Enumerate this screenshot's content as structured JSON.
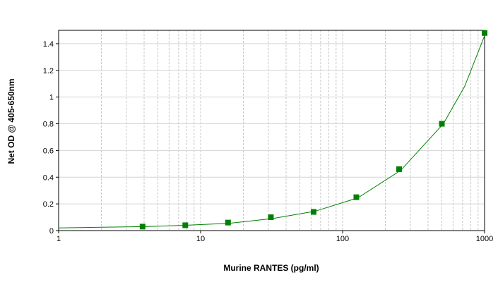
{
  "chart_data": {
    "type": "scatter",
    "x_label": "Murine RANTES (pg/ml)",
    "y_label": "Net OD @ 405-650nm",
    "x": [
      3.9,
      7.8,
      15.6,
      31.25,
      62.5,
      125,
      250,
      500,
      1000
    ],
    "values": [
      0.03,
      0.04,
      0.06,
      0.1,
      0.14,
      0.25,
      0.46,
      0.8,
      1.48
    ],
    "color": "#008000",
    "curve": {
      "x": [
        1,
        2,
        4,
        8,
        16,
        32,
        64,
        128,
        256,
        512,
        724,
        1000
      ],
      "values": [
        0.02,
        0.025,
        0.03,
        0.04,
        0.055,
        0.09,
        0.145,
        0.245,
        0.45,
        0.8,
        1.08,
        1.46
      ]
    },
    "xlog": true,
    "xlim": [
      1,
      1000
    ],
    "xticks": [
      1,
      10,
      100,
      1000
    ],
    "xminorticks": [
      2,
      3,
      4,
      5,
      6,
      7,
      8,
      9,
      20,
      30,
      40,
      50,
      60,
      70,
      80,
      90,
      200,
      300,
      400,
      500,
      600,
      700,
      800,
      900
    ],
    "ylim": [
      0,
      1.5
    ],
    "yticks": [
      0,
      0.2,
      0.4,
      0.6,
      0.8,
      1,
      1.2,
      1.4
    ],
    "grid": true
  }
}
